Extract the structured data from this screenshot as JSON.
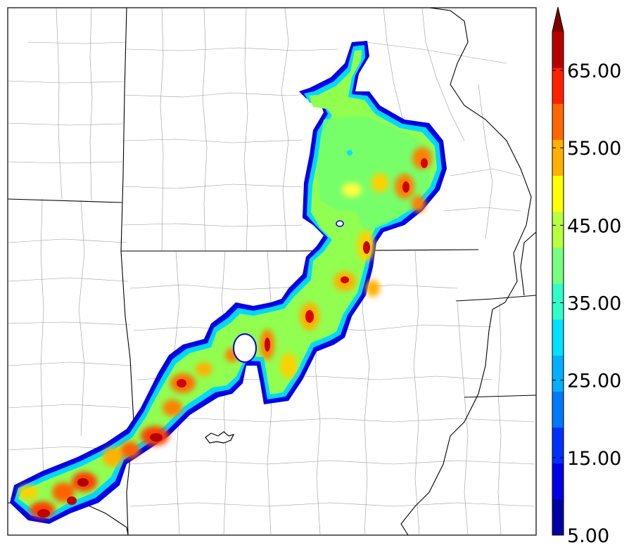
{
  "map": {
    "type": "filled-contour",
    "basemap": "county-and-state-boundaries"
  },
  "colorbar": {
    "orientation": "vertical",
    "extend": "max",
    "min": 5,
    "max": 70,
    "step": 5,
    "levels": [
      5,
      10,
      15,
      20,
      25,
      30,
      35,
      40,
      45,
      50,
      55,
      60,
      65,
      70
    ],
    "colors": [
      "#0000a8",
      "#0000e6",
      "#0030ff",
      "#0078ff",
      "#00b0ff",
      "#00e0ff",
      "#30ffc8",
      "#78ff80",
      "#b8ff40",
      "#ffff00",
      "#ffb000",
      "#ff6800",
      "#ff2000",
      "#b80000"
    ],
    "extend_color": "#800000",
    "tick_labels": [
      "5.00",
      "15.00",
      "25.00",
      "35.00",
      "45.00",
      "55.00",
      "65.00"
    ]
  }
}
